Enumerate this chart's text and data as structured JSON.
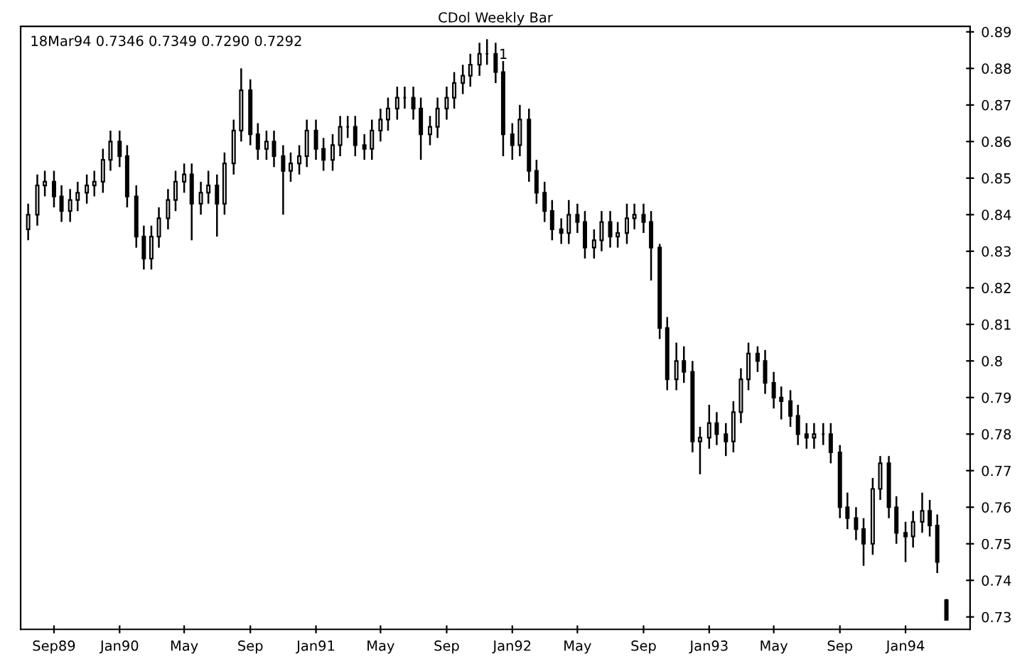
{
  "chart_data": {
    "type": "candlestick",
    "title": "CDol Weekly Bar",
    "annotations": [
      "18Mar94 0.7346 0.7349 0.7290 0.7292",
      {
        "text": "1",
        "x": "1991-11-15",
        "y": 0.888
      }
    ],
    "x": [
      "1989-07-15",
      "1989-08-01",
      "1989-08-15",
      "1989-09-01",
      "1989-09-15",
      "1989-10-01",
      "1989-10-15",
      "1989-11-01",
      "1989-11-15",
      "1989-12-01",
      "1989-12-15",
      "1990-01-01",
      "1990-01-15",
      "1990-02-01",
      "1990-02-15",
      "1990-03-01",
      "1990-03-15",
      "1990-04-01",
      "1990-04-15",
      "1990-05-01",
      "1990-05-15",
      "1990-06-01",
      "1990-06-15",
      "1990-07-01",
      "1990-07-15",
      "1990-08-01",
      "1990-08-15",
      "1990-09-01",
      "1990-09-15",
      "1990-10-01",
      "1990-10-15",
      "1990-11-01",
      "1990-11-15",
      "1990-12-01",
      "1990-12-15",
      "1991-01-01",
      "1991-01-15",
      "1991-02-01",
      "1991-02-15",
      "1991-03-01",
      "1991-03-15",
      "1991-04-01",
      "1991-04-15",
      "1991-05-01",
      "1991-05-15",
      "1991-06-01",
      "1991-06-15",
      "1991-07-01",
      "1991-07-15",
      "1991-08-01",
      "1991-08-15",
      "1991-09-01",
      "1991-09-15",
      "1991-10-01",
      "1991-10-15",
      "1991-11-01",
      "1991-11-15",
      "1991-12-01",
      "1991-12-15",
      "1992-01-01",
      "1992-01-15",
      "1992-02-01",
      "1992-02-15",
      "1992-03-01",
      "1992-03-15",
      "1992-04-01",
      "1992-04-15",
      "1992-05-01",
      "1992-05-15",
      "1992-06-01",
      "1992-06-15",
      "1992-07-01",
      "1992-07-15",
      "1992-08-01",
      "1992-08-15",
      "1992-09-01",
      "1992-09-15",
      "1992-10-01",
      "1992-10-15",
      "1992-11-01",
      "1992-11-15",
      "1992-12-01",
      "1992-12-15",
      "1993-01-01",
      "1993-01-15",
      "1993-02-01",
      "1993-02-15",
      "1993-03-01",
      "1993-03-15",
      "1993-04-01",
      "1993-04-15",
      "1993-05-01",
      "1993-05-15",
      "1993-06-01",
      "1993-06-15",
      "1993-07-01",
      "1993-07-15",
      "1993-08-01",
      "1993-08-15",
      "1993-09-01",
      "1993-09-15",
      "1993-10-01",
      "1993-10-15",
      "1993-11-01",
      "1993-11-15",
      "1993-12-01",
      "1993-12-15",
      "1994-01-01",
      "1994-01-15",
      "1994-02-01",
      "1994-02-15",
      "1994-03-01",
      "1994-03-18"
    ],
    "ohlc": [
      [
        0.836,
        0.843,
        0.833,
        0.84
      ],
      [
        0.84,
        0.851,
        0.837,
        0.848
      ],
      [
        0.848,
        0.852,
        0.845,
        0.849
      ],
      [
        0.849,
        0.852,
        0.842,
        0.845
      ],
      [
        0.845,
        0.848,
        0.838,
        0.841
      ],
      [
        0.841,
        0.847,
        0.838,
        0.844
      ],
      [
        0.844,
        0.849,
        0.841,
        0.846
      ],
      [
        0.846,
        0.851,
        0.843,
        0.848
      ],
      [
        0.848,
        0.852,
        0.845,
        0.849
      ],
      [
        0.849,
        0.858,
        0.846,
        0.855
      ],
      [
        0.855,
        0.863,
        0.852,
        0.86
      ],
      [
        0.86,
        0.863,
        0.853,
        0.856
      ],
      [
        0.856,
        0.859,
        0.842,
        0.845
      ],
      [
        0.845,
        0.848,
        0.831,
        0.834
      ],
      [
        0.834,
        0.837,
        0.825,
        0.828
      ],
      [
        0.828,
        0.837,
        0.825,
        0.834
      ],
      [
        0.834,
        0.842,
        0.831,
        0.839
      ],
      [
        0.839,
        0.847,
        0.836,
        0.844
      ],
      [
        0.844,
        0.852,
        0.841,
        0.849
      ],
      [
        0.849,
        0.854,
        0.846,
        0.851
      ],
      [
        0.851,
        0.854,
        0.833,
        0.843
      ],
      [
        0.843,
        0.849,
        0.84,
        0.846
      ],
      [
        0.846,
        0.852,
        0.843,
        0.848
      ],
      [
        0.848,
        0.851,
        0.834,
        0.843
      ],
      [
        0.843,
        0.857,
        0.84,
        0.854
      ],
      [
        0.854,
        0.866,
        0.851,
        0.863
      ],
      [
        0.863,
        0.88,
        0.86,
        0.874
      ],
      [
        0.874,
        0.877,
        0.859,
        0.862
      ],
      [
        0.862,
        0.865,
        0.855,
        0.858
      ],
      [
        0.858,
        0.863,
        0.855,
        0.86
      ],
      [
        0.86,
        0.863,
        0.853,
        0.856
      ],
      [
        0.856,
        0.859,
        0.84,
        0.852
      ],
      [
        0.852,
        0.857,
        0.849,
        0.854
      ],
      [
        0.854,
        0.859,
        0.851,
        0.856
      ],
      [
        0.856,
        0.866,
        0.853,
        0.863
      ],
      [
        0.863,
        0.866,
        0.855,
        0.858
      ],
      [
        0.858,
        0.861,
        0.852,
        0.855
      ],
      [
        0.855,
        0.862,
        0.852,
        0.859
      ],
      [
        0.859,
        0.867,
        0.856,
        0.864
      ],
      [
        0.864,
        0.867,
        0.861,
        0.864
      ],
      [
        0.864,
        0.867,
        0.856,
        0.859
      ],
      [
        0.859,
        0.862,
        0.855,
        0.858
      ],
      [
        0.858,
        0.866,
        0.855,
        0.863
      ],
      [
        0.863,
        0.869,
        0.86,
        0.866
      ],
      [
        0.866,
        0.872,
        0.863,
        0.869
      ],
      [
        0.869,
        0.875,
        0.866,
        0.872
      ],
      [
        0.872,
        0.875,
        0.869,
        0.872
      ],
      [
        0.872,
        0.875,
        0.866,
        0.869
      ],
      [
        0.869,
        0.872,
        0.855,
        0.862
      ],
      [
        0.862,
        0.867,
        0.859,
        0.864
      ],
      [
        0.864,
        0.872,
        0.861,
        0.869
      ],
      [
        0.869,
        0.875,
        0.866,
        0.872
      ],
      [
        0.872,
        0.879,
        0.869,
        0.876
      ],
      [
        0.876,
        0.881,
        0.873,
        0.878
      ],
      [
        0.878,
        0.884,
        0.875,
        0.881
      ],
      [
        0.881,
        0.887,
        0.878,
        0.884
      ],
      [
        0.884,
        0.888,
        0.881,
        0.884
      ],
      [
        0.884,
        0.887,
        0.876,
        0.879
      ],
      [
        0.879,
        0.882,
        0.856,
        0.862
      ],
      [
        0.862,
        0.865,
        0.855,
        0.859
      ],
      [
        0.859,
        0.87,
        0.856,
        0.866
      ],
      [
        0.866,
        0.869,
        0.849,
        0.852
      ],
      [
        0.852,
        0.855,
        0.843,
        0.846
      ],
      [
        0.846,
        0.849,
        0.838,
        0.841
      ],
      [
        0.841,
        0.844,
        0.833,
        0.836
      ],
      [
        0.836,
        0.839,
        0.832,
        0.835
      ],
      [
        0.835,
        0.844,
        0.832,
        0.84
      ],
      [
        0.84,
        0.843,
        0.835,
        0.838
      ],
      [
        0.838,
        0.841,
        0.828,
        0.831
      ],
      [
        0.831,
        0.836,
        0.828,
        0.833
      ],
      [
        0.833,
        0.841,
        0.83,
        0.838
      ],
      [
        0.838,
        0.841,
        0.831,
        0.834
      ],
      [
        0.834,
        0.838,
        0.831,
        0.835
      ],
      [
        0.835,
        0.843,
        0.832,
        0.839
      ],
      [
        0.839,
        0.843,
        0.836,
        0.84
      ],
      [
        0.84,
        0.843,
        0.835,
        0.838
      ],
      [
        0.838,
        0.841,
        0.822,
        0.831
      ],
      [
        0.831,
        0.832,
        0.806,
        0.809
      ],
      [
        0.809,
        0.812,
        0.792,
        0.795
      ],
      [
        0.795,
        0.805,
        0.792,
        0.8
      ],
      [
        0.8,
        0.804,
        0.794,
        0.797
      ],
      [
        0.797,
        0.8,
        0.775,
        0.778
      ],
      [
        0.778,
        0.782,
        0.769,
        0.779
      ],
      [
        0.779,
        0.788,
        0.776,
        0.783
      ],
      [
        0.783,
        0.786,
        0.777,
        0.78
      ],
      [
        0.78,
        0.783,
        0.774,
        0.778
      ],
      [
        0.778,
        0.789,
        0.775,
        0.786
      ],
      [
        0.786,
        0.798,
        0.783,
        0.795
      ],
      [
        0.795,
        0.805,
        0.792,
        0.802
      ],
      [
        0.802,
        0.804,
        0.797,
        0.8
      ],
      [
        0.8,
        0.803,
        0.791,
        0.794
      ],
      [
        0.794,
        0.797,
        0.787,
        0.79
      ],
      [
        0.79,
        0.793,
        0.784,
        0.789
      ],
      [
        0.789,
        0.792,
        0.782,
        0.785
      ],
      [
        0.785,
        0.788,
        0.777,
        0.78
      ],
      [
        0.78,
        0.783,
        0.776,
        0.779
      ],
      [
        0.779,
        0.783,
        0.776,
        0.78
      ],
      [
        0.78,
        0.783,
        0.777,
        0.78
      ],
      [
        0.78,
        0.783,
        0.772,
        0.775
      ],
      [
        0.775,
        0.777,
        0.757,
        0.76
      ],
      [
        0.76,
        0.764,
        0.754,
        0.757
      ],
      [
        0.757,
        0.76,
        0.751,
        0.754
      ],
      [
        0.754,
        0.757,
        0.744,
        0.75
      ],
      [
        0.75,
        0.768,
        0.747,
        0.765
      ],
      [
        0.765,
        0.774,
        0.762,
        0.772
      ],
      [
        0.772,
        0.774,
        0.757,
        0.76
      ],
      [
        0.76,
        0.763,
        0.75,
        0.753
      ],
      [
        0.753,
        0.756,
        0.745,
        0.752
      ],
      [
        0.752,
        0.759,
        0.749,
        0.756
      ],
      [
        0.756,
        0.764,
        0.753,
        0.759
      ],
      [
        0.759,
        0.762,
        0.752,
        0.755
      ],
      [
        0.755,
        0.758,
        0.742,
        0.745
      ],
      [
        0.7346,
        0.7349,
        0.729,
        0.7292
      ]
    ],
    "color": "#000000",
    "xlim": [
      "1989-07-01",
      "1994-05-01"
    ],
    "xticks": [
      {
        "value": "1989-09-01",
        "label": "Sep89"
      },
      {
        "value": "1990-01-01",
        "label": "Jan90"
      },
      {
        "value": "1990-05-01",
        "label": "May"
      },
      {
        "value": "1990-09-01",
        "label": "Sep"
      },
      {
        "value": "1991-01-01",
        "label": "Jan91"
      },
      {
        "value": "1991-05-01",
        "label": "May"
      },
      {
        "value": "1991-09-01",
        "label": "Sep"
      },
      {
        "value": "1992-01-01",
        "label": "Jan92"
      },
      {
        "value": "1992-05-01",
        "label": "May"
      },
      {
        "value": "1992-09-01",
        "label": "Sep"
      },
      {
        "value": "1993-01-01",
        "label": "Jan93"
      },
      {
        "value": "1993-05-01",
        "label": "May"
      },
      {
        "value": "1993-09-01",
        "label": "Sep"
      },
      {
        "value": "1994-01-01",
        "label": "Jan94"
      }
    ],
    "ylim": [
      0.7266,
      0.8915
    ],
    "yticks": [
      0.73,
      0.74,
      0.75,
      0.76,
      0.77,
      0.78,
      0.79,
      0.8,
      0.81,
      0.82,
      0.83,
      0.84,
      0.85,
      0.86,
      0.87,
      0.88,
      0.89
    ],
    "grid": false,
    "legend": false
  }
}
